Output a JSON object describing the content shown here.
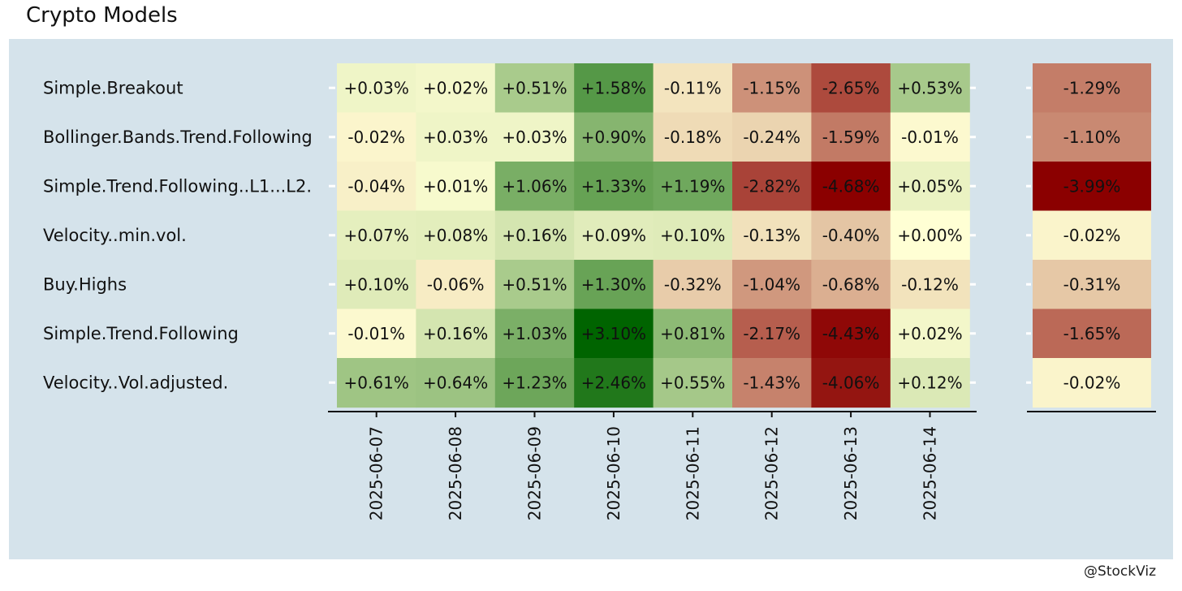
{
  "title": "Crypto Models",
  "credit": "@StockViz",
  "chart_data": {
    "type": "heatmap",
    "title": "Crypto Models",
    "xlabel": "",
    "ylabel": "",
    "rows": [
      "Simple.Breakout",
      "Bollinger.Bands.Trend.Following",
      "Simple.Trend.Following..L1...L2.",
      "Velocity..min.vol.",
      "Buy.Highs",
      "Simple.Trend.Following",
      "Velocity..Vol.adjusted."
    ],
    "columns": [
      "2025-06-07",
      "2025-06-08",
      "2025-06-09",
      "2025-06-10",
      "2025-06-11",
      "2025-06-12",
      "2025-06-13",
      "2025-06-14"
    ],
    "values": [
      [
        0.03,
        0.02,
        0.51,
        1.58,
        -0.11,
        -1.15,
        -2.65,
        0.53
      ],
      [
        -0.02,
        0.03,
        0.03,
        0.9,
        -0.18,
        -0.24,
        -1.59,
        -0.01
      ],
      [
        -0.04,
        0.01,
        1.06,
        1.33,
        1.19,
        -2.82,
        -4.68,
        0.05
      ],
      [
        0.07,
        0.08,
        0.16,
        0.09,
        0.1,
        -0.13,
        -0.4,
        0.0
      ],
      [
        0.1,
        -0.06,
        0.51,
        1.3,
        -0.32,
        -1.04,
        -0.68,
        -0.12
      ],
      [
        -0.01,
        0.16,
        1.03,
        3.1,
        0.81,
        -2.17,
        -4.43,
        0.02
      ],
      [
        0.61,
        0.64,
        1.23,
        2.46,
        0.55,
        -1.43,
        -4.06,
        0.12
      ]
    ],
    "labels": [
      [
        "+0.03%",
        "+0.02%",
        "+0.51%",
        "+1.58%",
        "-0.11%",
        "-1.15%",
        "-2.65%",
        "+0.53%"
      ],
      [
        "-0.02%",
        "+0.03%",
        "+0.03%",
        "+0.90%",
        "-0.18%",
        "-0.24%",
        "-1.59%",
        "-0.01%"
      ],
      [
        "-0.04%",
        "+0.01%",
        "+1.06%",
        "+1.33%",
        "+1.19%",
        "-2.82%",
        "-4.68%",
        "+0.05%"
      ],
      [
        "+0.07%",
        "+0.08%",
        "+0.16%",
        "+0.09%",
        "+0.10%",
        "-0.13%",
        "-0.40%",
        "+0.00%"
      ],
      [
        "+0.10%",
        "-0.06%",
        "+0.51%",
        "+1.30%",
        "-0.32%",
        "-1.04%",
        "-0.68%",
        "-0.12%"
      ],
      [
        "-0.01%",
        "+0.16%",
        "+1.03%",
        "+3.10%",
        "+0.81%",
        "-2.17%",
        "-4.43%",
        "+0.02%"
      ],
      [
        "+0.61%",
        "+0.64%",
        "+1.23%",
        "+2.46%",
        "+0.55%",
        "-1.43%",
        "-4.06%",
        "+0.12%"
      ]
    ],
    "summary_values": [
      -1.29,
      -1.1,
      -3.99,
      -0.02,
      -0.31,
      -1.65,
      -0.02
    ],
    "summary_labels": [
      "-1.29%",
      "-1.10%",
      "-3.99%",
      "-0.02%",
      "-0.31%",
      "-1.65%",
      "-0.02%"
    ],
    "colors": {
      "positive_max": "#006400",
      "neutral": "#ffffd4",
      "negative_max": "#8b0000"
    },
    "grid": false,
    "legend": "none"
  }
}
